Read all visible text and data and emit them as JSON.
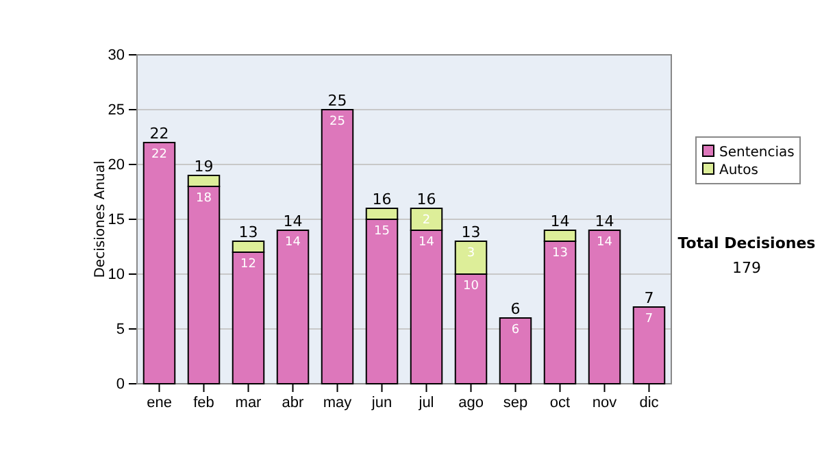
{
  "chart_data": {
    "type": "bar",
    "stacked": true,
    "ylabel": "Decisiones Anual",
    "categories": [
      "ene",
      "feb",
      "mar",
      "abr",
      "may",
      "jun",
      "jul",
      "ago",
      "sep",
      "oct",
      "nov",
      "dic"
    ],
    "series": [
      {
        "name": "Sentencias",
        "color": "#dd77bb",
        "values": [
          22,
          18,
          12,
          14,
          25,
          15,
          14,
          10,
          6,
          13,
          14,
          7
        ],
        "value_labels": [
          "22",
          "18",
          "12",
          "14",
          "25",
          "15",
          "14",
          "10",
          "6",
          "13",
          "14",
          "7"
        ]
      },
      {
        "name": "Autos",
        "color": "#ddee99",
        "values": [
          0,
          1,
          1,
          0,
          0,
          1,
          2,
          3,
          0,
          1,
          0,
          0
        ],
        "value_labels": [
          null,
          null,
          null,
          null,
          null,
          null,
          "2",
          "3",
          null,
          null,
          null,
          null
        ]
      }
    ],
    "totals": [
      "22",
      "19",
      "13",
      "14",
      "25",
      "16",
      "16",
      "13",
      "6",
      "14",
      "14",
      "7"
    ],
    "ylim": [
      0,
      30
    ],
    "yticks": [
      0,
      5,
      10,
      15,
      20,
      25,
      30
    ],
    "grid": "y",
    "legend": "right",
    "annotations": [
      "Total Decisiones",
      "179"
    ]
  }
}
